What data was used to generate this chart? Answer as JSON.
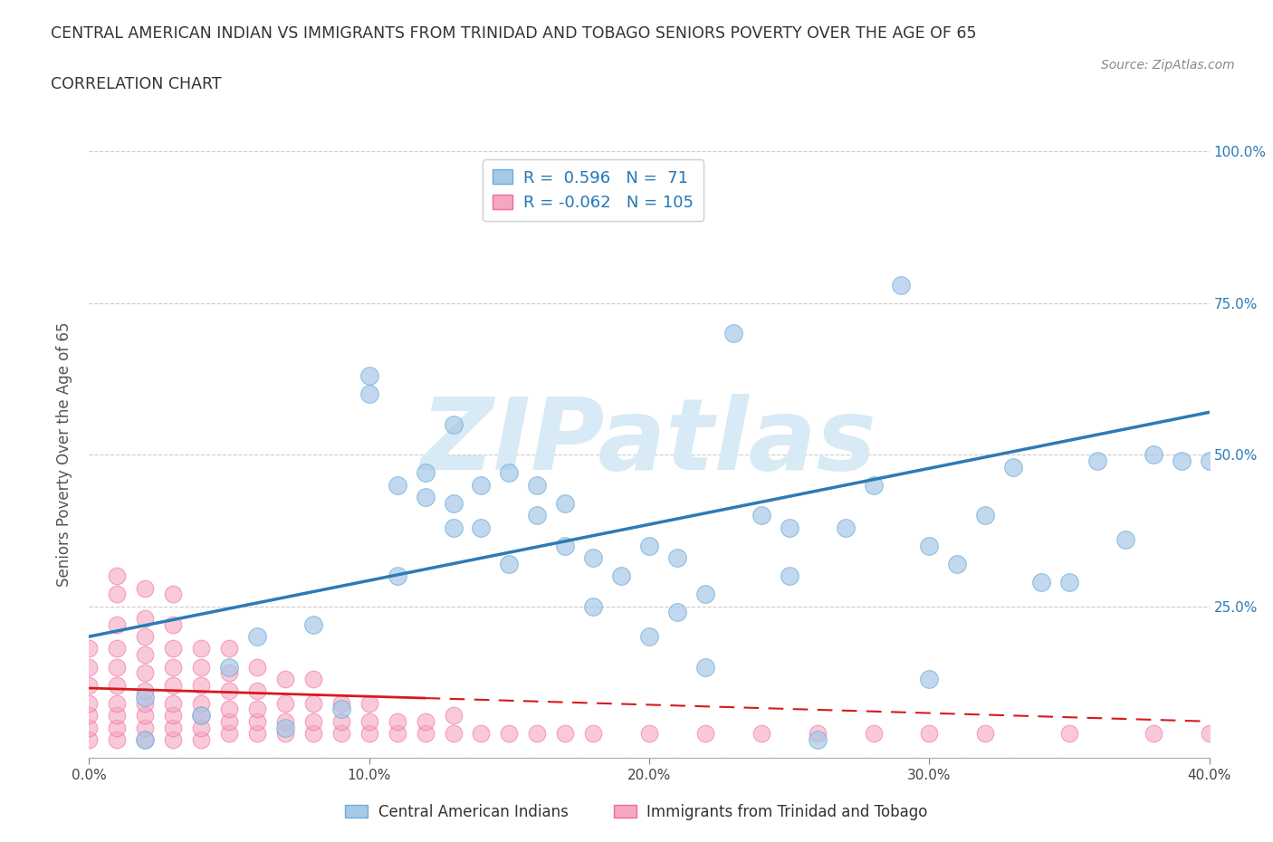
{
  "title": "CENTRAL AMERICAN INDIAN VS IMMIGRANTS FROM TRINIDAD AND TOBAGO SENIORS POVERTY OVER THE AGE OF 65",
  "subtitle": "CORRELATION CHART",
  "source": "Source: ZipAtlas.com",
  "ylabel": "Seniors Poverty Over the Age of 65",
  "xlim": [
    0.0,
    0.4
  ],
  "ylim": [
    0.0,
    1.0
  ],
  "xticks": [
    0.0,
    0.1,
    0.2,
    0.3,
    0.4
  ],
  "xticklabels": [
    "0.0%",
    "10.0%",
    "20.0%",
    "30.0%",
    "40.0%"
  ],
  "yticks": [
    0.0,
    0.25,
    0.5,
    0.75,
    1.0
  ],
  "yticklabels_left": [
    "",
    "",
    "",
    "",
    ""
  ],
  "yticklabels_right": [
    "",
    "25.0%",
    "50.0%",
    "75.0%",
    "100.0%"
  ],
  "blue_R": 0.596,
  "blue_N": 71,
  "pink_R": -0.062,
  "pink_N": 105,
  "blue_color": "#a8c8e8",
  "pink_color": "#f4a8c0",
  "blue_edge_color": "#6baed6",
  "pink_edge_color": "#f768a1",
  "blue_line_color": "#2c7bb6",
  "pink_line_color": "#d7191c",
  "watermark": "ZIPatlas",
  "watermark_color": "#d8eaf5",
  "legend_label_blue": "Central American Indians",
  "legend_label_pink": "Immigrants from Trinidad and Tobago",
  "blue_scatter_x": [
    0.02,
    0.02,
    0.04,
    0.05,
    0.06,
    0.07,
    0.08,
    0.09,
    0.1,
    0.1,
    0.11,
    0.11,
    0.12,
    0.12,
    0.13,
    0.13,
    0.13,
    0.14,
    0.14,
    0.15,
    0.15,
    0.16,
    0.16,
    0.17,
    0.17,
    0.18,
    0.18,
    0.19,
    0.2,
    0.2,
    0.21,
    0.21,
    0.22,
    0.22,
    0.23,
    0.24,
    0.25,
    0.25,
    0.26,
    0.27,
    0.28,
    0.29,
    0.3,
    0.3,
    0.31,
    0.32,
    0.33,
    0.34,
    0.35,
    0.36,
    0.37,
    0.38,
    0.39,
    0.4
  ],
  "blue_scatter_y": [
    0.03,
    0.1,
    0.07,
    0.15,
    0.2,
    0.05,
    0.22,
    0.08,
    0.6,
    0.63,
    0.45,
    0.3,
    0.43,
    0.47,
    0.38,
    0.42,
    0.55,
    0.38,
    0.45,
    0.32,
    0.47,
    0.4,
    0.45,
    0.35,
    0.42,
    0.33,
    0.25,
    0.3,
    0.2,
    0.35,
    0.24,
    0.33,
    0.27,
    0.15,
    0.7,
    0.4,
    0.3,
    0.38,
    0.03,
    0.38,
    0.45,
    0.78,
    0.13,
    0.35,
    0.32,
    0.4,
    0.48,
    0.29,
    0.29,
    0.49,
    0.36,
    0.5,
    0.49,
    0.49
  ],
  "pink_scatter_x": [
    0.0,
    0.0,
    0.0,
    0.0,
    0.0,
    0.0,
    0.0,
    0.01,
    0.01,
    0.01,
    0.01,
    0.01,
    0.01,
    0.01,
    0.01,
    0.01,
    0.01,
    0.02,
    0.02,
    0.02,
    0.02,
    0.02,
    0.02,
    0.02,
    0.02,
    0.02,
    0.02,
    0.03,
    0.03,
    0.03,
    0.03,
    0.03,
    0.03,
    0.03,
    0.03,
    0.03,
    0.04,
    0.04,
    0.04,
    0.04,
    0.04,
    0.04,
    0.04,
    0.05,
    0.05,
    0.05,
    0.05,
    0.05,
    0.05,
    0.06,
    0.06,
    0.06,
    0.06,
    0.06,
    0.07,
    0.07,
    0.07,
    0.07,
    0.08,
    0.08,
    0.08,
    0.08,
    0.09,
    0.09,
    0.09,
    0.1,
    0.1,
    0.1,
    0.11,
    0.11,
    0.12,
    0.12,
    0.13,
    0.13,
    0.14,
    0.15,
    0.16,
    0.17,
    0.18,
    0.2,
    0.22,
    0.24,
    0.26,
    0.28,
    0.3,
    0.32,
    0.35,
    0.38,
    0.4
  ],
  "pink_scatter_y": [
    0.03,
    0.05,
    0.07,
    0.09,
    0.12,
    0.15,
    0.18,
    0.03,
    0.05,
    0.07,
    0.09,
    0.12,
    0.15,
    0.18,
    0.22,
    0.27,
    0.3,
    0.03,
    0.05,
    0.07,
    0.09,
    0.11,
    0.14,
    0.17,
    0.2,
    0.23,
    0.28,
    0.03,
    0.05,
    0.07,
    0.09,
    0.12,
    0.15,
    0.18,
    0.22,
    0.27,
    0.03,
    0.05,
    0.07,
    0.09,
    0.12,
    0.15,
    0.18,
    0.04,
    0.06,
    0.08,
    0.11,
    0.14,
    0.18,
    0.04,
    0.06,
    0.08,
    0.11,
    0.15,
    0.04,
    0.06,
    0.09,
    0.13,
    0.04,
    0.06,
    0.09,
    0.13,
    0.04,
    0.06,
    0.09,
    0.04,
    0.06,
    0.09,
    0.04,
    0.06,
    0.04,
    0.06,
    0.04,
    0.07,
    0.04,
    0.04,
    0.04,
    0.04,
    0.04,
    0.04,
    0.04,
    0.04,
    0.04,
    0.04,
    0.04,
    0.04,
    0.04,
    0.04,
    0.04
  ],
  "blue_line_x0": 0.0,
  "blue_line_y0": 0.2,
  "blue_line_x1": 0.4,
  "blue_line_y1": 0.57,
  "pink_line_x0": 0.0,
  "pink_line_y0": 0.115,
  "pink_line_x1": 0.4,
  "pink_line_y1": 0.06,
  "background_color": "#ffffff",
  "grid_color": "#cccccc"
}
